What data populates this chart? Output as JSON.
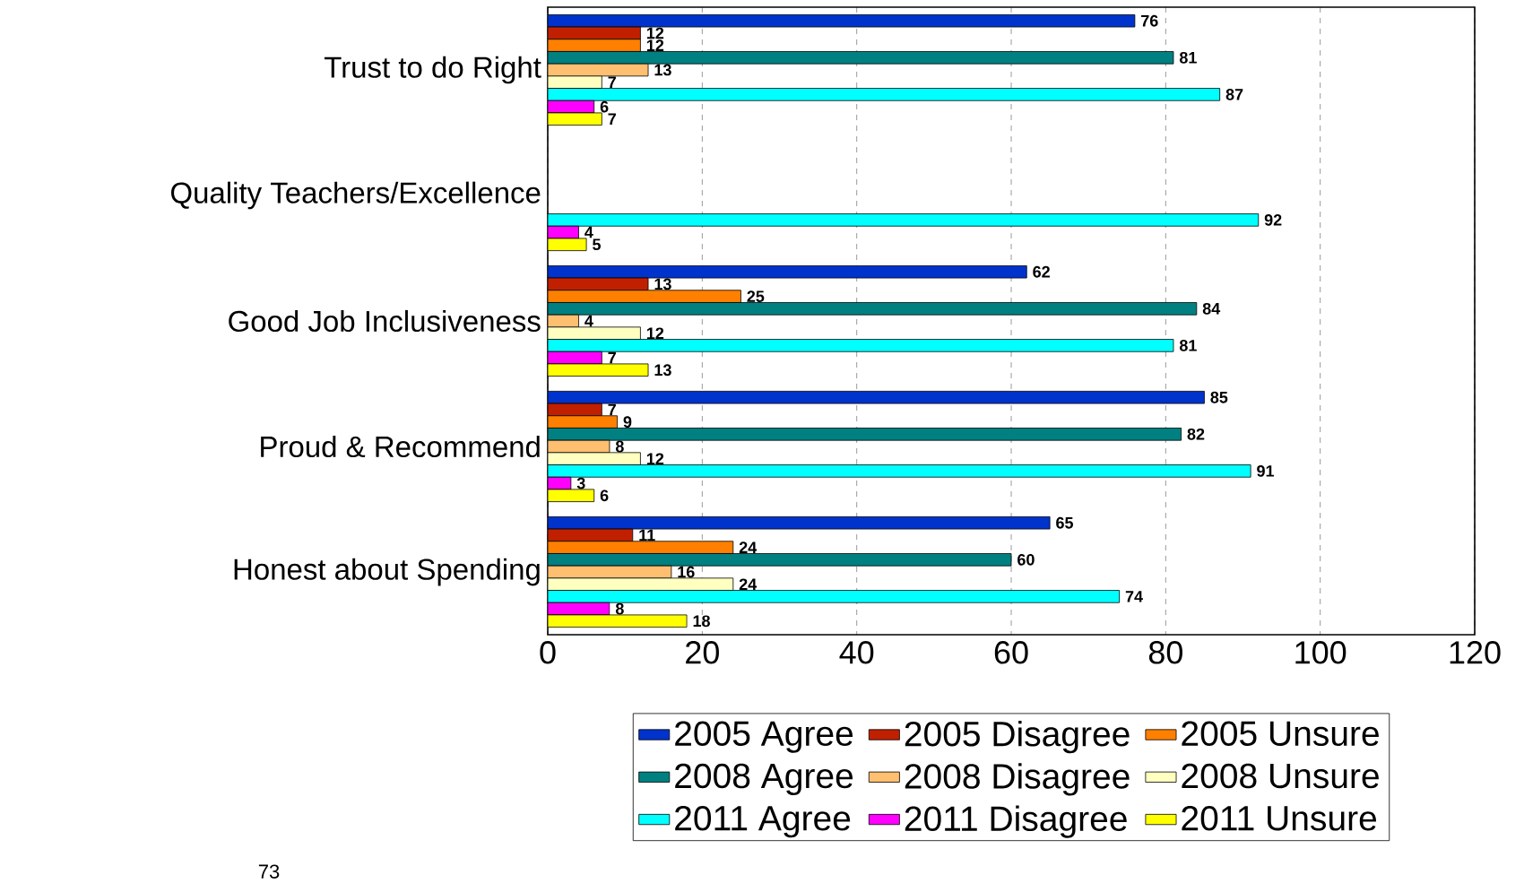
{
  "chart_data": {
    "type": "bar",
    "orientation": "horizontal",
    "categories": [
      "Trust to do Right",
      "Quality Teachers/Excellence",
      "Good Job Inclusiveness",
      "Proud & Recommend",
      "Honest about Spending"
    ],
    "series": [
      {
        "name": "2005 Agree",
        "color": "#0033cc",
        "values": [
          76,
          null,
          62,
          85,
          65
        ]
      },
      {
        "name": "2005 Disagree",
        "color": "#c02000",
        "values": [
          12,
          null,
          13,
          7,
          11
        ]
      },
      {
        "name": "2005 Unsure",
        "color": "#ff8000",
        "values": [
          12,
          null,
          25,
          9,
          24
        ]
      },
      {
        "name": "2008 Agree",
        "color": "#008080",
        "values": [
          81,
          null,
          84,
          82,
          60
        ]
      },
      {
        "name": "2008 Disagree",
        "color": "#ffbf70",
        "values": [
          13,
          null,
          4,
          8,
          16
        ]
      },
      {
        "name": "2008 Unsure",
        "color": "#ffffc0",
        "values": [
          7,
          null,
          12,
          12,
          24
        ]
      },
      {
        "name": "2011 Agree",
        "color": "#00ffff",
        "values": [
          87,
          92,
          81,
          91,
          74
        ]
      },
      {
        "name": "2011 Disagree",
        "color": "#ff00ff",
        "values": [
          6,
          4,
          7,
          3,
          8
        ]
      },
      {
        "name": "2011 Unsure",
        "color": "#ffff00",
        "values": [
          7,
          5,
          13,
          6,
          18
        ]
      }
    ],
    "xlim": [
      0,
      120
    ],
    "xticks": [
      0,
      20,
      40,
      60,
      80,
      100,
      120
    ],
    "grid": "x",
    "legend": "bottom",
    "data_labels": true,
    "annotations": [
      "73"
    ]
  }
}
